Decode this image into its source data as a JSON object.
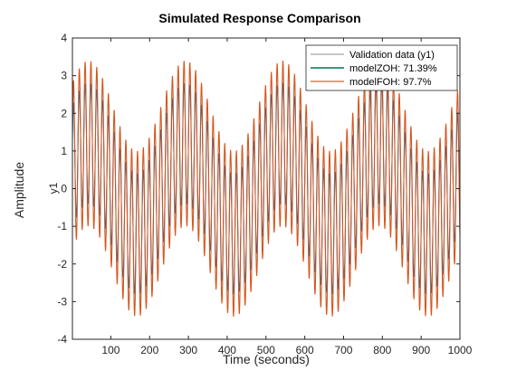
{
  "chart_data": {
    "type": "line",
    "title": "Simulated Response Comparison",
    "xlabel": "Time (seconds)",
    "ylabel": "Amplitude",
    "channel_label": "y1",
    "xlim": [
      1,
      1000
    ],
    "ylim": [
      -4,
      4
    ],
    "xticks": [
      100,
      200,
      300,
      400,
      500,
      600,
      700,
      800,
      900,
      1000
    ],
    "yticks": [
      -4,
      -3,
      -2,
      -1,
      0,
      1,
      2,
      3,
      4
    ],
    "grid": false,
    "legend_position": "top-right",
    "series": [
      {
        "name": "Validation data (y1)",
        "color": "#b3b3b3",
        "signal": {
          "offset_amplitude": 1.2,
          "offset_period": 250,
          "oscillation_amplitude": 2.1,
          "oscillation_period": 15
        }
      },
      {
        "name": "modelZOH: 71.39%",
        "color": "#0072bd",
        "legend_color": "#00714f",
        "signal": {
          "offset_amplitude": 1.2,
          "offset_period": 250,
          "oscillation_amplitude": 1.6,
          "oscillation_period": 15
        }
      },
      {
        "name": "modelFOH: 97.7%",
        "color": "#d95319",
        "legend_color": "#e07a4f",
        "signal": {
          "offset_amplitude": 1.2,
          "offset_period": 250,
          "oscillation_amplitude": 2.2,
          "oscillation_period": 15
        }
      }
    ]
  }
}
